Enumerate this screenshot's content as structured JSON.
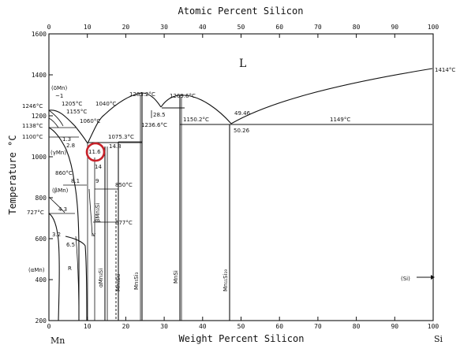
{
  "title": "Atomic Percent Silicon",
  "xlabel": "Weight Percent Silicon",
  "ylabel": "Temperature °C",
  "top_ticks": [
    "0",
    "10",
    "20",
    "30",
    "40",
    "50",
    "60",
    "70",
    "80",
    "90",
    "100"
  ],
  "bottom_ticks": [
    "0",
    "10",
    "20",
    "30",
    "40",
    "50",
    "60",
    "70",
    "80",
    "90",
    "100"
  ],
  "left_ticks": [
    "200",
    "400",
    "600",
    "800",
    "1000",
    "1200",
    "1400",
    "1600"
  ],
  "element_left": "Mn",
  "element_right": "Si",
  "phase_liquid": "L",
  "labels": {
    "t1246": "1246°C",
    "t1138": "1138°C",
    "t1100": "1100°C",
    "t727": "727°C",
    "dMn": "(δMn)",
    "approx1": "~1",
    "t1205": "1205°C",
    "t1155": "1155°C",
    "t1060": "1060°C",
    "t1040": "1040°C",
    "t1283": "1283.2°C",
    "t1269": "1269.6°C",
    "t1075": "1075.3°C",
    "n1488": "14.8",
    "n286": "28.5",
    "t1236": "1236.6°C",
    "t1150": "1150.2°C",
    "t1149": "1149°C",
    "n4946": "49.46",
    "n5026": "50.26",
    "t1414": "1414°C",
    "n13": "1.3",
    "n28": "2.8",
    "gMn": "(γMn)",
    "n116": "11.6",
    "n14": "14",
    "t850": "850°C",
    "t860": "860°C",
    "n81": "8.1",
    "n9": "9",
    "bMn": "(βMn)",
    "n43": "4.3",
    "n32": "3.2",
    "n65": "6.5",
    "t677": "677°C",
    "aMn": "(αMn)",
    "R": "R",
    "v": "v",
    "Si_phase": "(Si)",
    "bMn3Si": "βMn₃Si",
    "aMn3Si": "αMn₃Si",
    "Mn5Si2": "Mn₅Si₂",
    "Mn5Si3": "Mn₅Si₃",
    "MnSi": "MnSi",
    "Mn11Si19": "Mn₁₁Si₁₉"
  }
}
